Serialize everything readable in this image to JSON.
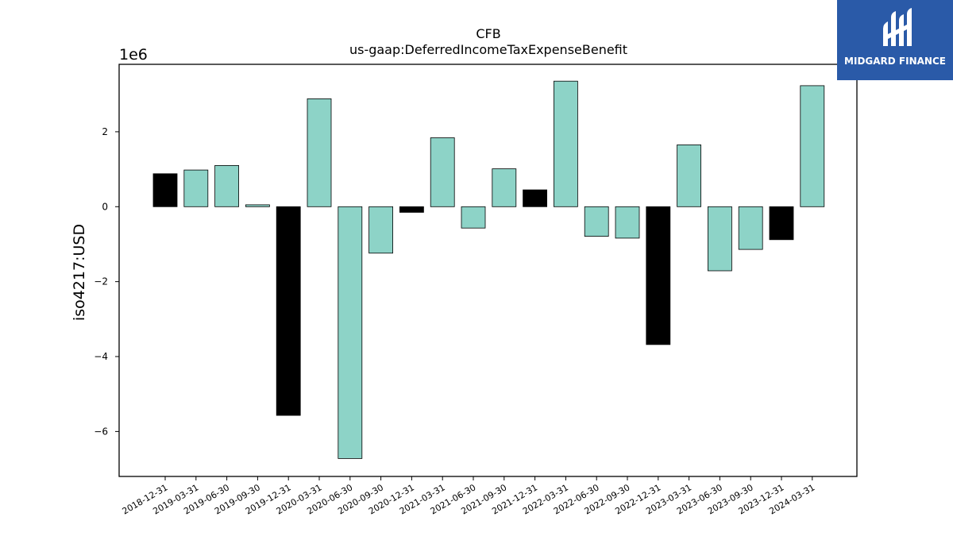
{
  "chart_data": {
    "type": "bar",
    "title": "CFB",
    "subtitle": "us-gaap:DeferredIncomeTaxExpenseBenefit",
    "ylabel": "iso4217:USD",
    "xlabel": "",
    "scale_label": "1e6",
    "ylim": [
      -7.2,
      3.8
    ],
    "yticks": [
      -6,
      -4,
      -2,
      0,
      2
    ],
    "ytick_labels": [
      "−6",
      "−4",
      "−2",
      "0",
      "2"
    ],
    "grid": false,
    "categories": [
      "2018-12-31",
      "2019-03-31",
      "2019-06-30",
      "2019-09-30",
      "2019-12-31",
      "2020-03-31",
      "2020-06-30",
      "2020-09-30",
      "2020-12-31",
      "2021-03-31",
      "2021-06-30",
      "2021-09-30",
      "2021-12-31",
      "2022-03-31",
      "2022-06-30",
      "2022-09-30",
      "2022-12-31",
      "2023-03-31",
      "2023-06-30",
      "2023-09-30",
      "2023-12-31",
      "2024-03-31"
    ],
    "values": [
      0.88,
      0.98,
      1.1,
      0.05,
      -5.57,
      2.88,
      -6.72,
      -1.24,
      -0.15,
      1.84,
      -0.57,
      1.01,
      0.45,
      3.35,
      -0.79,
      -0.84,
      -3.68,
      1.65,
      -1.71,
      -1.14,
      -0.88,
      3.23
    ],
    "bar_colors": [
      "#000000",
      "#8dd3c7",
      "#8dd3c7",
      "#8dd3c7",
      "#000000",
      "#8dd3c7",
      "#8dd3c7",
      "#8dd3c7",
      "#000000",
      "#8dd3c7",
      "#8dd3c7",
      "#8dd3c7",
      "#000000",
      "#8dd3c7",
      "#8dd3c7",
      "#8dd3c7",
      "#000000",
      "#8dd3c7",
      "#8dd3c7",
      "#8dd3c7",
      "#000000",
      "#8dd3c7"
    ]
  },
  "logo": {
    "text": "MIDGARD FINANCE",
    "color": "#2a5aa8"
  }
}
